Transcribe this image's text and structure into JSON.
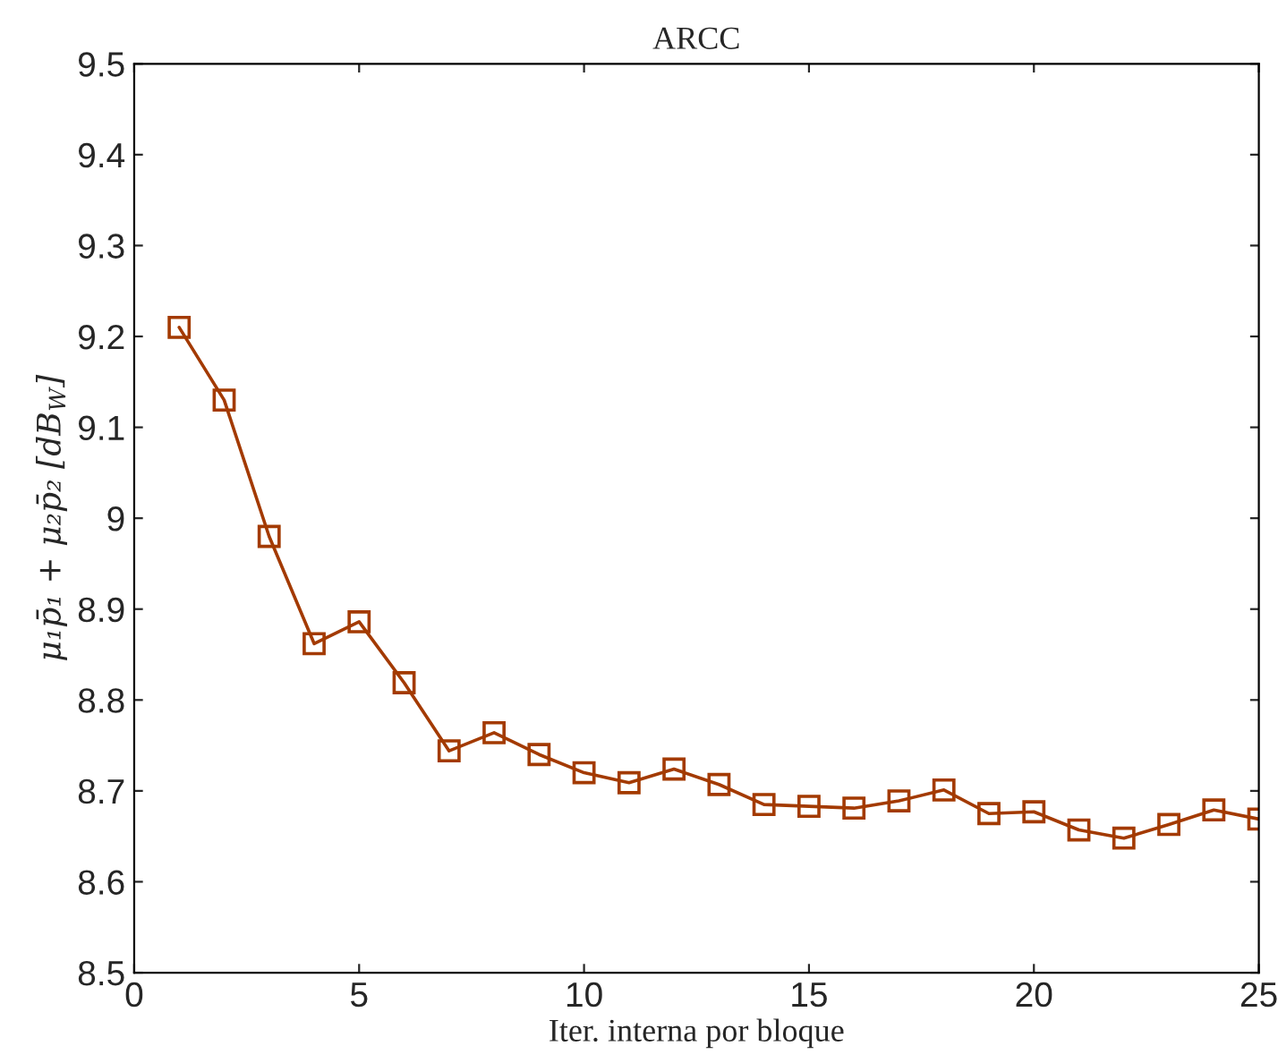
{
  "chart_data": {
    "type": "line",
    "title": "ARCC",
    "xlabel": "Iter. interna por bloque",
    "ylabel": "μ₁p̄₁ + μ₂p̄₂ [dB$_{W}$]",
    "x": [
      1,
      2,
      3,
      4,
      5,
      6,
      7,
      8,
      9,
      10,
      11,
      12,
      13,
      14,
      15,
      16,
      17,
      18,
      19,
      20,
      21,
      22,
      23,
      24,
      25
    ],
    "series": [
      {
        "color": "#a33a00",
        "values": [
          9.21,
          9.13,
          8.98,
          8.862,
          8.886,
          8.819,
          8.744,
          8.764,
          8.74,
          8.72,
          8.709,
          8.724,
          8.707,
          8.685,
          8.683,
          8.681,
          8.689,
          8.701,
          8.675,
          8.677,
          8.657,
          8.648,
          8.663,
          8.679,
          8.669
        ]
      }
    ],
    "xlim": [
      0,
      25
    ],
    "xticks": [
      0,
      5,
      10,
      15,
      20,
      25
    ],
    "ylim": [
      8.5,
      9.5
    ],
    "yticks": [
      8.5,
      8.6,
      8.7,
      8.8,
      8.9,
      9,
      9.1,
      9.2,
      9.3,
      9.4,
      9.5
    ],
    "marker": "square",
    "line_style": "solid",
    "grid": false,
    "legend": false
  }
}
